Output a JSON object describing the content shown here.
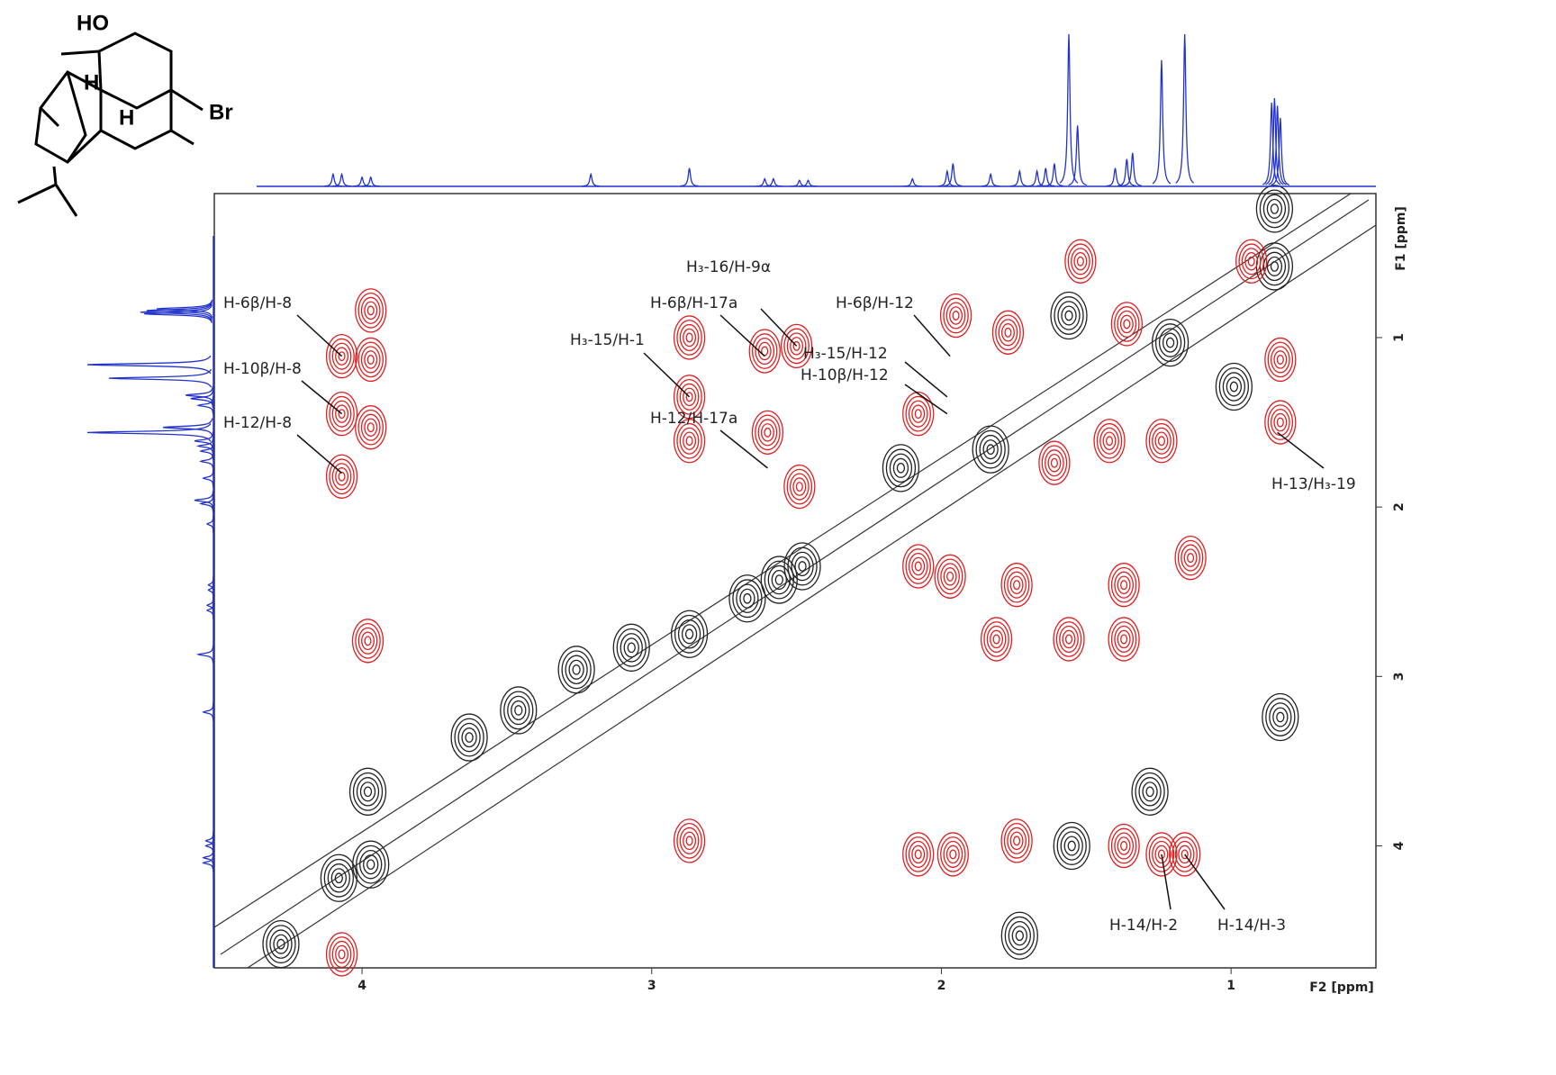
{
  "chart_data": {
    "type": "contour2d",
    "xlabel": "F2 [ppm]",
    "ylabel": "F1 [ppm]",
    "xlim": [
      4.51,
      0.5
    ],
    "ylim": [
      0.15,
      4.72
    ],
    "xticks": [
      4,
      3,
      2,
      1
    ],
    "yticks": [
      1,
      2,
      3,
      4
    ],
    "cross_peaks": {
      "color": "#e02020",
      "x": [
        4.07,
        3.97,
        3.97,
        4.07,
        3.97,
        4.07,
        3.98,
        4.07,
        2.87,
        2.87,
        2.87,
        2.61,
        2.5,
        2.6,
        2.49,
        2.87,
        2.08,
        2.08,
        1.97,
        2.08,
        1.96,
        1.74,
        1.74,
        1.81,
        1.56,
        1.37,
        1.37,
        1.37,
        1.14,
        1.24,
        1.16,
        1.42,
        1.24,
        0.83,
        0.83,
        1.61,
        1.95,
        1.77,
        1.52,
        1.36,
        0.93
      ],
      "y": [
        1.11,
        0.84,
        1.13,
        1.45,
        1.53,
        1.82,
        2.79,
        4.64,
        1.0,
        1.35,
        1.61,
        1.08,
        1.05,
        1.56,
        1.88,
        3.97,
        1.45,
        2.35,
        2.41,
        4.05,
        4.05,
        2.46,
        3.97,
        2.78,
        2.78,
        2.46,
        2.78,
        4.0,
        2.3,
        4.05,
        4.05,
        1.61,
        1.61,
        1.13,
        1.5,
        1.74,
        0.87,
        0.97,
        0.55,
        0.92,
        0.55
      ]
    },
    "diagonal_peaks": {
      "color": "#222222",
      "x": [
        4.28,
        4.08,
        3.97,
        3.98,
        3.63,
        3.46,
        3.26,
        3.07,
        2.87,
        2.67,
        2.56,
        2.48,
        2.14,
        1.83,
        1.56,
        1.21,
        0.99,
        0.85,
        0.85,
        0.83,
        1.73,
        1.28,
        1.55
      ],
      "y": [
        4.58,
        4.19,
        4.11,
        3.68,
        3.36,
        3.2,
        2.96,
        2.83,
        2.75,
        2.54,
        2.43,
        2.35,
        1.77,
        1.66,
        0.87,
        1.03,
        1.29,
        0.58,
        0.24,
        3.24,
        4.53,
        3.68,
        4.0
      ]
    },
    "projection": {
      "color": "#2233cc",
      "x": [
        4.1,
        4.07,
        4.0,
        3.97,
        3.21,
        2.87,
        2.61,
        2.58,
        2.49,
        2.46,
        2.1,
        1.98,
        1.96,
        1.83,
        1.73,
        1.67,
        1.64,
        1.61,
        1.56,
        1.53,
        1.4,
        1.36,
        1.34,
        1.24,
        1.16,
        0.86,
        0.85,
        0.84,
        0.83
      ],
      "values": [
        8,
        8,
        6,
        6,
        8,
        12,
        5,
        5,
        4,
        4,
        5,
        10,
        15,
        8,
        10,
        10,
        12,
        15,
        100,
        40,
        12,
        18,
        22,
        83,
        100,
        55,
        58,
        53,
        45
      ]
    },
    "annotations": [
      {
        "text": "H-6β/H-8",
        "x": 4.07,
        "y": 1.11
      },
      {
        "text": "H-10β/H-8",
        "x": 4.07,
        "y": 1.45
      },
      {
        "text": "H-12/H-8",
        "x": 4.07,
        "y": 1.8
      },
      {
        "text": "H₃-16/H-9α",
        "x": 2.5,
        "y": 1.05
      },
      {
        "text": "H-6β/H-17a",
        "x": 2.61,
        "y": 1.11
      },
      {
        "text": "H₃-15/H-1",
        "x": 2.87,
        "y": 1.35
      },
      {
        "text": "H-12/H-17a",
        "x": 2.6,
        "y": 1.77
      },
      {
        "text": "H-6β/H-12",
        "x": 1.97,
        "y": 1.11
      },
      {
        "text": "H₃-15/H-12",
        "x": 1.98,
        "y": 1.35
      },
      {
        "text": "H-10β/H-12",
        "x": 1.98,
        "y": 1.45
      },
      {
        "text": "H-13/H₃-19",
        "x": 0.84,
        "y": 1.56
      },
      {
        "text": "H-14/H-2",
        "x": 1.24,
        "y": 4.05
      },
      {
        "text": "H-14/H-3",
        "x": 1.16,
        "y": 4.05
      }
    ],
    "structure": {
      "atoms": [
        "HO",
        "H",
        "H",
        "Br"
      ]
    }
  }
}
